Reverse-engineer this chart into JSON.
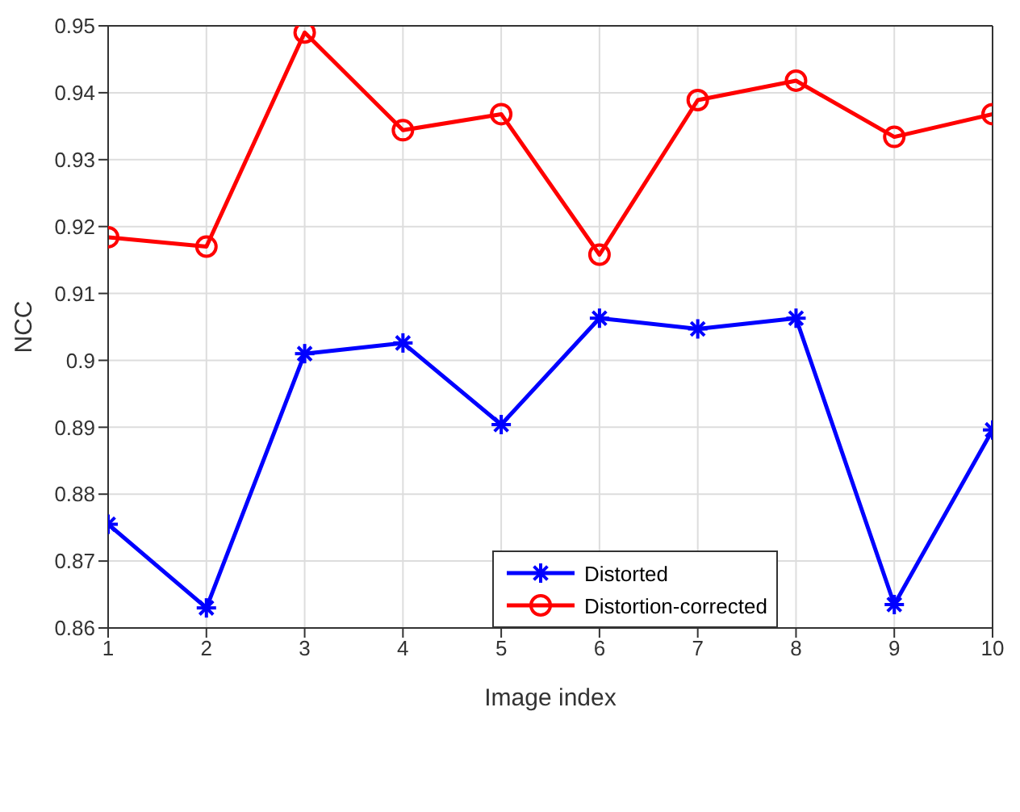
{
  "chart_data": {
    "type": "line",
    "xlabel": "Image index",
    "ylabel": "NCC",
    "x": [
      1,
      2,
      3,
      4,
      5,
      6,
      7,
      8,
      9,
      10
    ],
    "series": [
      {
        "name": "Distorted",
        "color": "#0000ff",
        "marker": "cross",
        "values": [
          0.8755,
          0.863,
          0.901,
          0.9026,
          0.8904,
          0.9063,
          0.9047,
          0.9063,
          0.8635,
          0.8896
        ]
      },
      {
        "name": "Distortion-corrected",
        "color": "#ff0000",
        "marker": "circle",
        "values": [
          0.9184,
          0.917,
          0.949,
          0.9344,
          0.9368,
          0.9158,
          0.9389,
          0.9418,
          0.9334,
          0.9368
        ]
      }
    ],
    "xlim": [
      1,
      10
    ],
    "xticks": [
      1,
      2,
      3,
      4,
      5,
      6,
      7,
      8,
      9,
      10
    ],
    "ylim": [
      0.86,
      0.95
    ],
    "yticks": [
      0.86,
      0.87,
      0.88,
      0.89,
      0.9,
      0.91,
      0.92,
      0.93,
      0.94,
      0.95
    ],
    "grid": true,
    "legend": "bottom right",
    "line_style": "solid"
  }
}
